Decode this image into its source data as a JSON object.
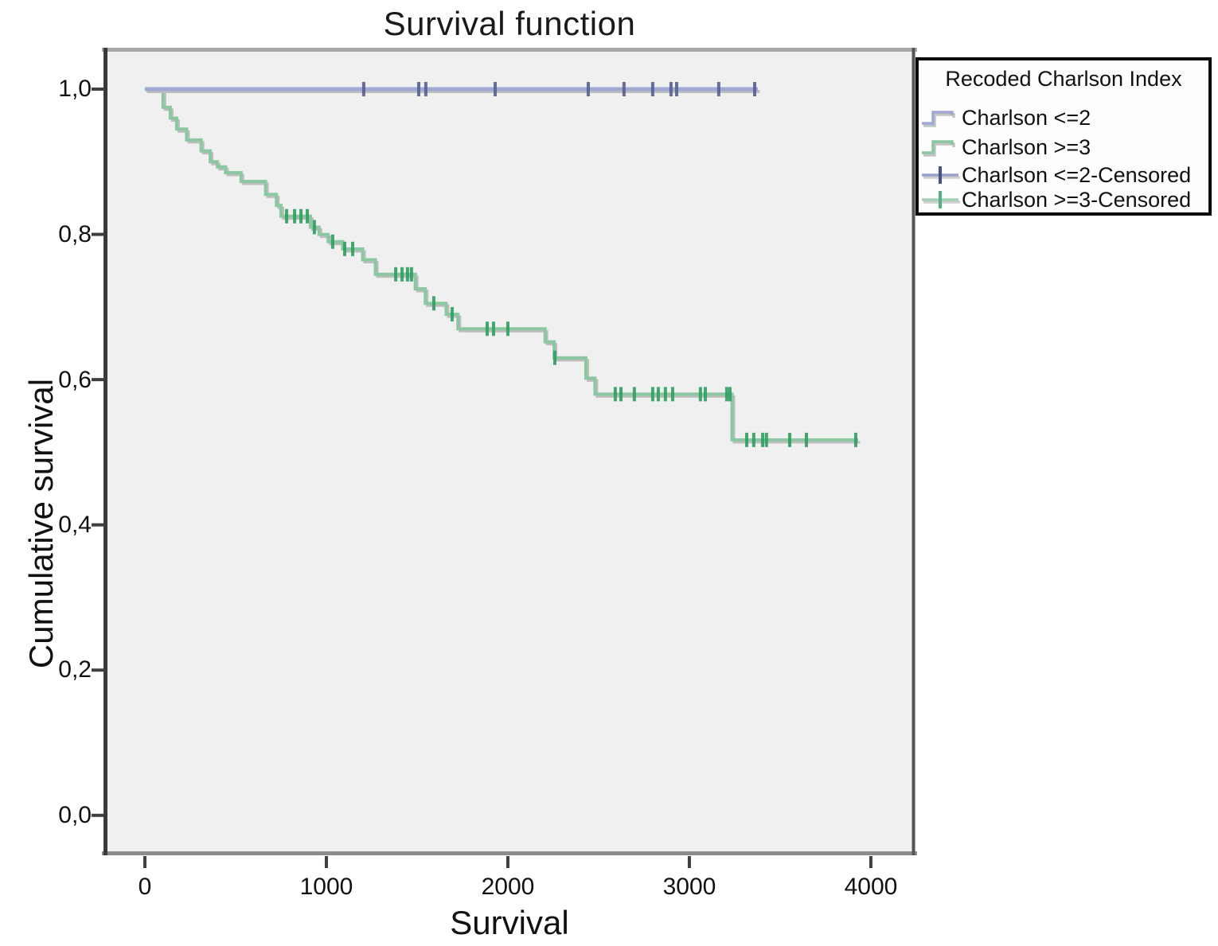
{
  "figure": {
    "title": "Survival function",
    "x_axis_title": "Survival",
    "y_axis_title": "Cumulative survival"
  },
  "legend": {
    "title": "Recoded Charlson Index",
    "entries": [
      {
        "label": "Charlson <=2",
        "symbol": "step",
        "color": "#a2a8d4",
        "mark_color": "#636aa1"
      },
      {
        "label": "Charlson >=3",
        "symbol": "step",
        "color": "#8bc8a2",
        "mark_color": "#2f9e61"
      },
      {
        "label": "Charlson <=2-Censored",
        "symbol": "censor",
        "color": "#9aa2cc",
        "mark_color": "#4a5287"
      },
      {
        "label": "Charlson >=3-Censored",
        "symbol": "censor",
        "color": "#a5d2b6",
        "mark_color": "#55b183"
      }
    ]
  },
  "chart_data": {
    "type": "line",
    "subtype": "kaplan_meier_step",
    "title": "Survival function",
    "xlabel": "Survival",
    "ylabel": "Cumulative survival",
    "legend_position": "upper-right-outside",
    "grid": false,
    "plot_bg": "#f0f0f1",
    "xlim": [
      -228,
      4246
    ],
    "ylim": [
      -0.055,
      1.057
    ],
    "x_ticks": [
      0,
      1000,
      2000,
      3000,
      4000
    ],
    "x_tick_labels": [
      "0",
      "1000",
      "2000",
      "3000",
      "4000"
    ],
    "y_ticks": [
      1.0,
      0.8,
      0.6,
      0.4,
      0.2,
      0.0
    ],
    "y_tick_labels": [
      "1,0",
      "0,8",
      "0,6",
      "0,4",
      "0,2",
      "0,0"
    ],
    "series": [
      {
        "name": "Charlson <=2",
        "color": "#a2a8d4",
        "censor_color": "#565d92",
        "line_width": 5,
        "steps": [
          [
            0,
            1.0
          ]
        ],
        "end_x": 3377,
        "censors": [
          [
            1206,
            1.0
          ],
          [
            1509,
            1.0
          ],
          [
            1548,
            1.0
          ],
          [
            1930,
            1.0
          ],
          [
            2443,
            1.0
          ],
          [
            2640,
            1.0
          ],
          [
            2798,
            1.0
          ],
          [
            2899,
            1.0
          ],
          [
            2930,
            1.0
          ],
          [
            3162,
            1.0
          ],
          [
            3360,
            1.0
          ]
        ]
      },
      {
        "name": "Charlson >=3",
        "color": "#8bc8a2",
        "censor_color": "#2f9e61",
        "line_width": 4,
        "steps": [
          [
            0,
            1.0
          ],
          [
            100,
            0.975
          ],
          [
            140,
            0.96
          ],
          [
            175,
            0.945
          ],
          [
            230,
            0.93
          ],
          [
            310,
            0.915
          ],
          [
            360,
            0.9
          ],
          [
            400,
            0.893
          ],
          [
            445,
            0.885
          ],
          [
            530,
            0.873
          ],
          [
            665,
            0.855
          ],
          [
            725,
            0.84
          ],
          [
            750,
            0.825
          ],
          [
            912,
            0.81
          ],
          [
            960,
            0.8
          ],
          [
            1010,
            0.79
          ],
          [
            1090,
            0.78
          ],
          [
            1200,
            0.765
          ],
          [
            1270,
            0.745
          ],
          [
            1490,
            0.725
          ],
          [
            1545,
            0.705
          ],
          [
            1660,
            0.69
          ],
          [
            1725,
            0.67
          ],
          [
            2205,
            0.652
          ],
          [
            2255,
            0.63
          ],
          [
            2430,
            0.602
          ],
          [
            2480,
            0.58
          ],
          [
            3235,
            0.517
          ]
        ],
        "end_x": 3930,
        "censors": [
          [
            781,
            0.825
          ],
          [
            825,
            0.825
          ],
          [
            860,
            0.825
          ],
          [
            895,
            0.825
          ],
          [
            934,
            0.81
          ],
          [
            1035,
            0.79
          ],
          [
            1101,
            0.78
          ],
          [
            1145,
            0.78
          ],
          [
            1382,
            0.745
          ],
          [
            1417,
            0.745
          ],
          [
            1447,
            0.745
          ],
          [
            1469,
            0.745
          ],
          [
            1592,
            0.705
          ],
          [
            1693,
            0.69
          ],
          [
            1886,
            0.67
          ],
          [
            1921,
            0.67
          ],
          [
            2000,
            0.67
          ],
          [
            2259,
            0.63
          ],
          [
            2592,
            0.58
          ],
          [
            2623,
            0.58
          ],
          [
            2697,
            0.58
          ],
          [
            2798,
            0.58
          ],
          [
            2829,
            0.58
          ],
          [
            2868,
            0.58
          ],
          [
            2908,
            0.58
          ],
          [
            3061,
            0.58
          ],
          [
            3088,
            0.58
          ],
          [
            3206,
            0.58
          ],
          [
            3224,
            0.58
          ],
          [
            3316,
            0.517
          ],
          [
            3355,
            0.517
          ],
          [
            3404,
            0.517
          ],
          [
            3425,
            0.517
          ],
          [
            3553,
            0.517
          ],
          [
            3645,
            0.517
          ],
          [
            3917,
            0.517
          ]
        ]
      }
    ]
  }
}
